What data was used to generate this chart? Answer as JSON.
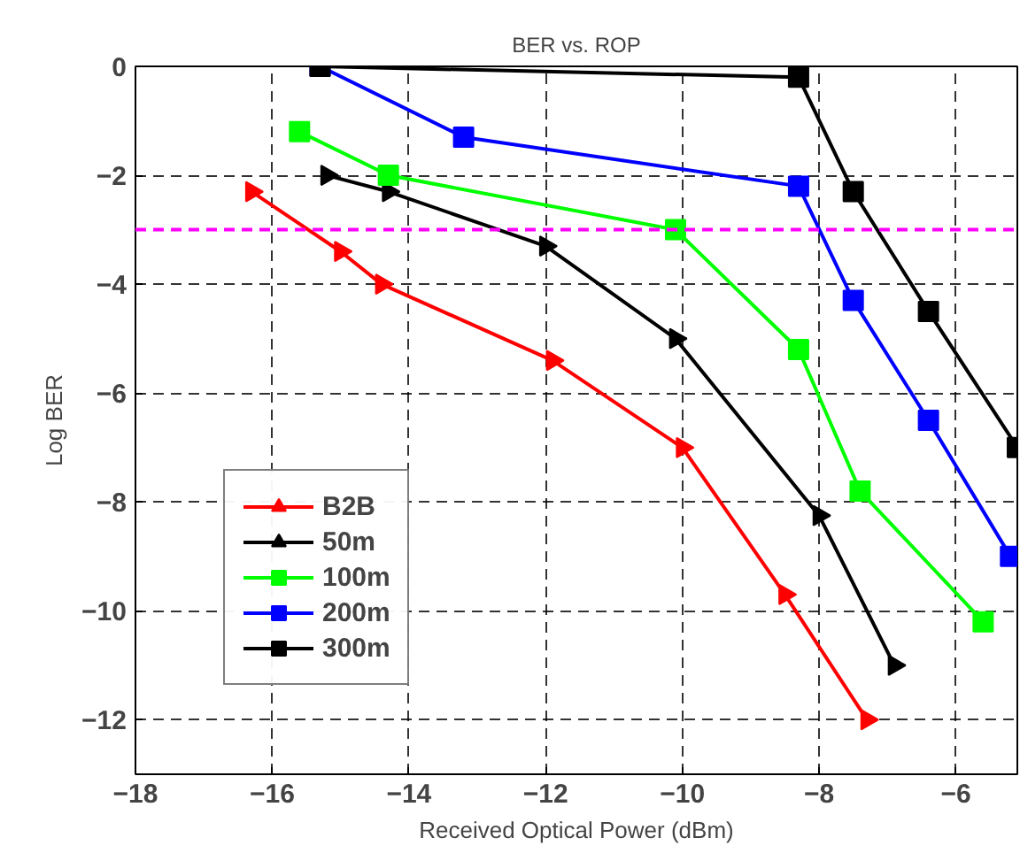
{
  "chart_data": {
    "type": "line",
    "title": "BER vs. ROP",
    "xlabel": "Received Optical Power (dBm)",
    "ylabel": "Log BER",
    "xlim": [
      -18,
      -5.1
    ],
    "ylim": [
      -13,
      0
    ],
    "xticks": [
      -18,
      -16,
      -14,
      -12,
      -10,
      -8,
      -6
    ],
    "yticks": [
      0,
      -2,
      -4,
      -6,
      -8,
      -10,
      -12
    ],
    "grid": true,
    "legend": "bottom left",
    "ref_lines": [
      {
        "axis": "y",
        "value": -3,
        "color": "#ff00ff",
        "line_style": "dashed"
      }
    ],
    "series": [
      {
        "name": "B2B",
        "color": "#ff0000",
        "marker": "triangle",
        "x": [
          -16.3,
          -15.0,
          -14.4,
          -11.9,
          -10.0,
          -8.5,
          -7.3
        ],
        "values": [
          -2.3,
          -3.4,
          -4.0,
          -5.4,
          -7.0,
          -9.7,
          -12.0
        ]
      },
      {
        "name": "50m",
        "color": "#000000",
        "marker": "triangle",
        "x": [
          -15.2,
          -14.3,
          -12.0,
          -10.1,
          -8.0,
          -6.9
        ],
        "values": [
          -2.0,
          -2.3,
          -3.3,
          -5.0,
          -8.25,
          -11.0
        ]
      },
      {
        "name": "100m",
        "color": "#00ff00",
        "marker": "square",
        "x": [
          -15.6,
          -14.3,
          -10.1,
          -8.3,
          -7.4,
          -5.6
        ],
        "values": [
          -1.2,
          -2.0,
          -3.0,
          -5.2,
          -7.8,
          -10.2
        ]
      },
      {
        "name": "200m",
        "color": "#0000ff",
        "marker": "square",
        "x": [
          -15.3,
          -13.2,
          -8.3,
          -7.5,
          -6.4,
          -5.2
        ],
        "values": [
          0,
          -1.3,
          -2.2,
          -4.3,
          -6.5,
          -9.0
        ]
      },
      {
        "name": "300m",
        "color": "#000000",
        "marker": "square",
        "x": [
          -15.3,
          -8.3,
          -7.5,
          -6.4,
          -5.1
        ],
        "values": [
          0,
          -0.2,
          -2.3,
          -4.5,
          -7.0
        ]
      }
    ]
  }
}
